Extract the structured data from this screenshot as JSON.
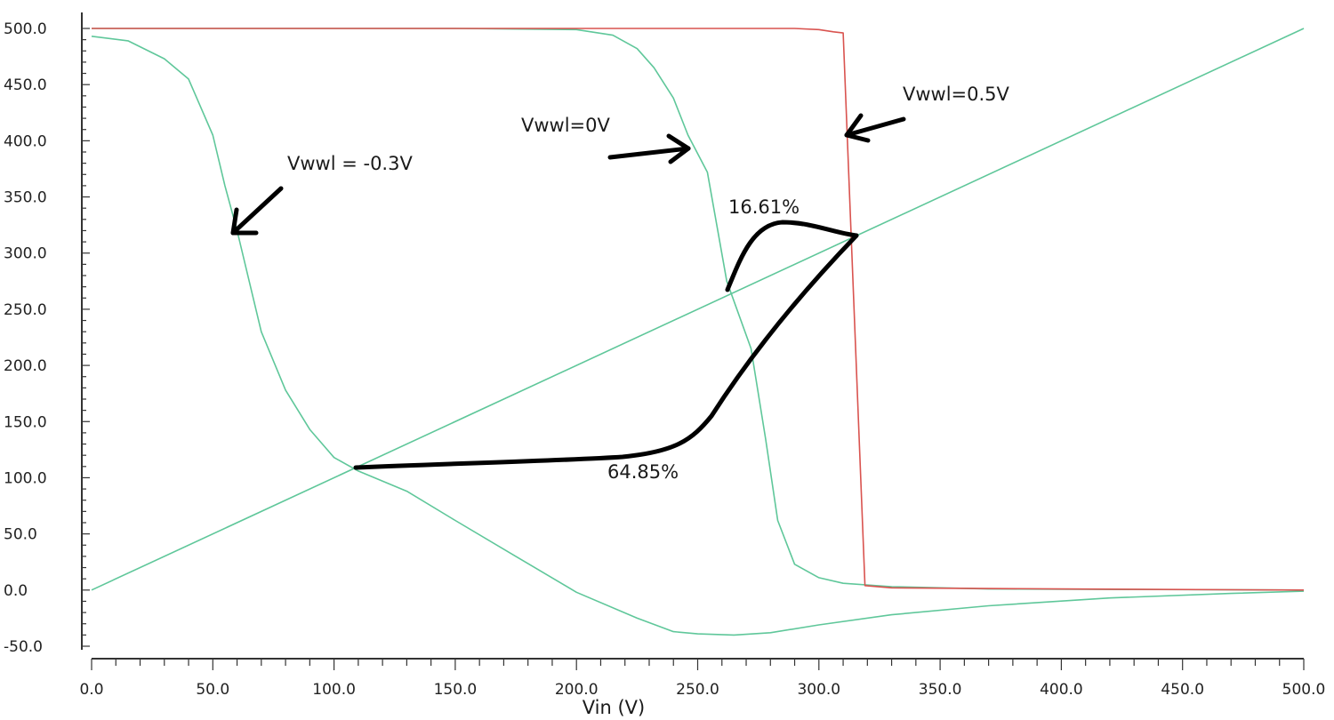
{
  "chart_data": {
    "type": "line",
    "xlabel": "Vin (V)",
    "ylabel": "",
    "xlim": [
      0,
      500
    ],
    "ylim": [
      -50,
      500
    ],
    "x_ticks": [
      "0.0",
      "50.0",
      "100.0",
      "150.0",
      "200.0",
      "250.0",
      "300.0",
      "350.0",
      "400.0",
      "450.0",
      "500.0"
    ],
    "y_ticks": [
      "500.0",
      "450.0",
      "400.0",
      "350.0",
      "300.0",
      "250.0",
      "200.0",
      "150.0",
      "100.0",
      "50.0",
      "0.0",
      "-50.0"
    ],
    "grid": false,
    "series": [
      {
        "color": "#5fc79a",
        "points": [
          [
            0,
            0
          ],
          [
            500,
            500
          ]
        ]
      },
      {
        "color": "#5fc79a",
        "points": [
          [
            0,
            493
          ],
          [
            15,
            489
          ],
          [
            30,
            473
          ],
          [
            40,
            455
          ],
          [
            50,
            405
          ],
          [
            55,
            360
          ],
          [
            60,
            320
          ],
          [
            70,
            230
          ],
          [
            80,
            178
          ],
          [
            90,
            143
          ],
          [
            100,
            118
          ],
          [
            110,
            106
          ],
          [
            130,
            88
          ],
          [
            150,
            62
          ],
          [
            175,
            30
          ],
          [
            200,
            -2
          ],
          [
            225,
            -25
          ],
          [
            240,
            -37
          ],
          [
            250,
            -39
          ],
          [
            265,
            -40
          ],
          [
            280,
            -38
          ],
          [
            300,
            -31
          ],
          [
            330,
            -22
          ],
          [
            370,
            -14
          ],
          [
            420,
            -7
          ],
          [
            470,
            -3
          ],
          [
            500,
            -1
          ]
        ]
      },
      {
        "color": "#5fc79a",
        "points": [
          [
            0,
            500
          ],
          [
            150,
            500
          ],
          [
            200,
            499
          ],
          [
            215,
            494
          ],
          [
            225,
            482
          ],
          [
            232,
            465
          ],
          [
            240,
            438
          ],
          [
            246,
            405
          ],
          [
            254,
            372
          ],
          [
            262,
            275
          ],
          [
            272,
            215
          ],
          [
            278,
            135
          ],
          [
            283,
            62
          ],
          [
            290,
            23
          ],
          [
            300,
            11
          ],
          [
            310,
            6
          ],
          [
            330,
            3
          ],
          [
            370,
            1
          ],
          [
            500,
            0
          ]
        ]
      },
      {
        "color": "#d9534f",
        "points": [
          [
            0,
            500
          ],
          [
            290,
            500
          ],
          [
            300,
            499
          ],
          [
            306,
            497
          ],
          [
            310,
            496
          ],
          [
            319,
            4
          ],
          [
            330,
            2
          ],
          [
            400,
            1
          ],
          [
            500,
            0
          ]
        ]
      }
    ],
    "annotations": [
      {
        "text": "Vwwl = -0.3V"
      },
      {
        "text": "Vwwl=0V"
      },
      {
        "text": "Vwwl=0.5V"
      },
      {
        "text": "16.61%"
      },
      {
        "text": "64.85%"
      }
    ]
  }
}
